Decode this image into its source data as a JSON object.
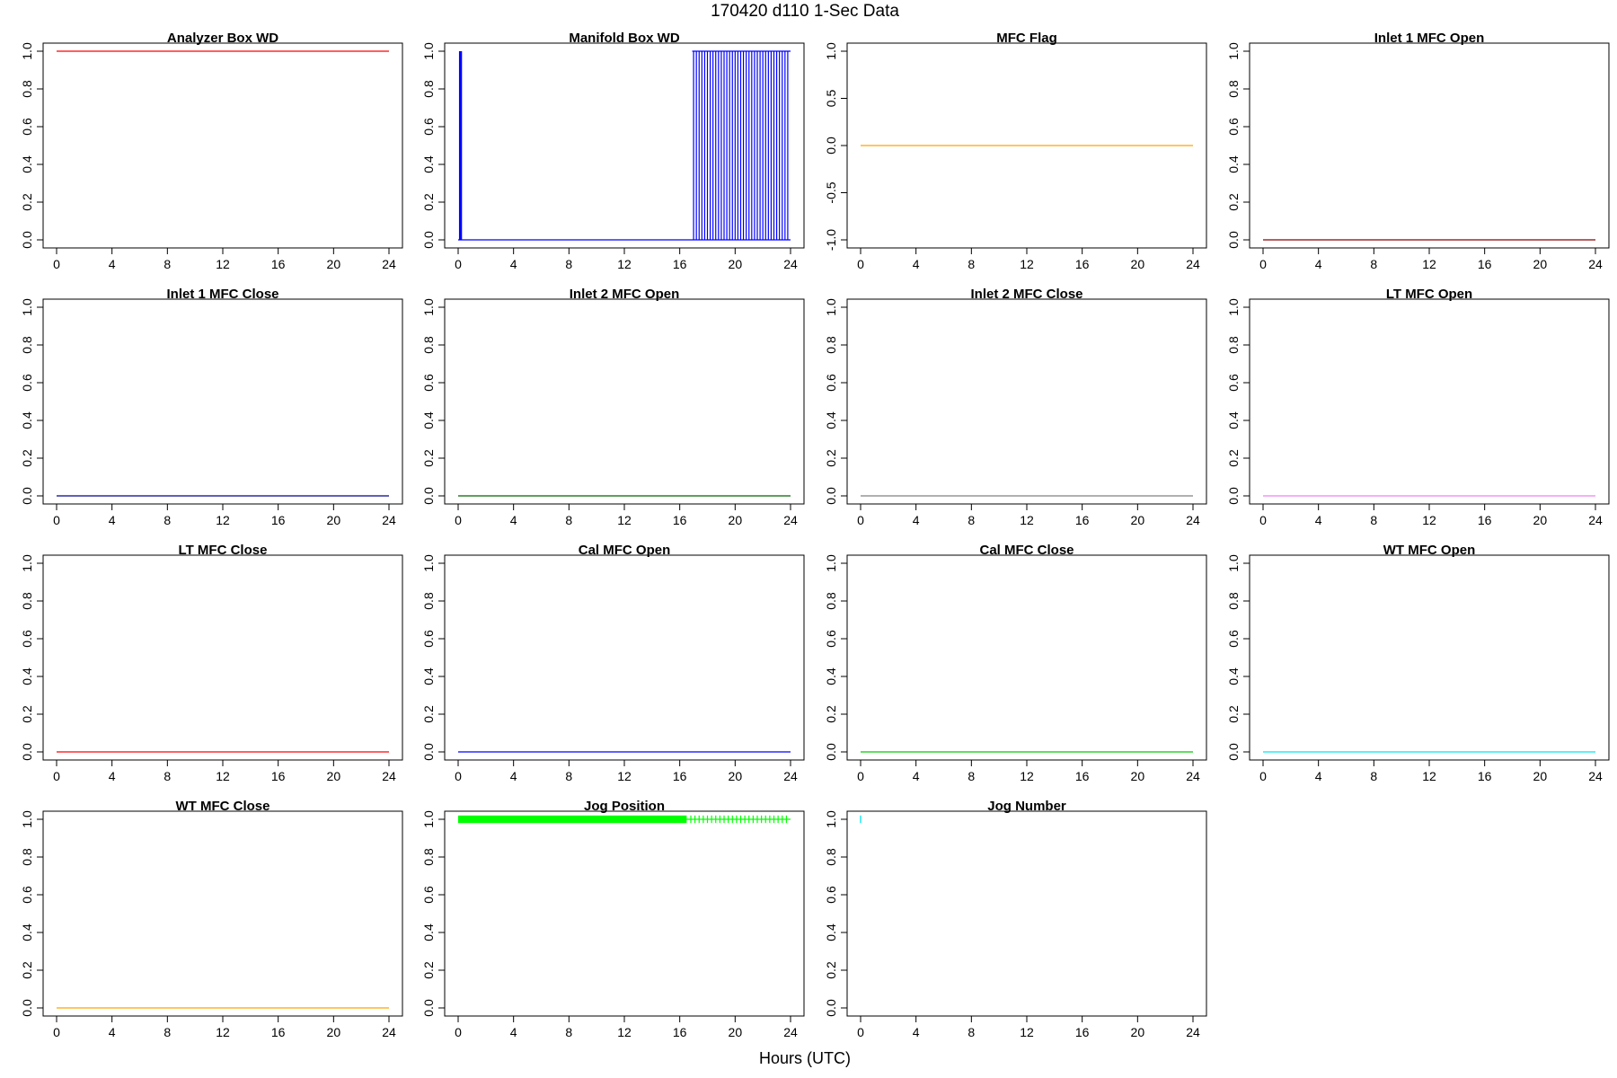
{
  "figure": {
    "title": "170420   d110   1-Sec Data",
    "xlabel": "Hours (UTC)"
  },
  "chart_data": [
    {
      "type": "line",
      "title": "Analyzer Box WD",
      "color": "#ff0000",
      "xlim": [
        0,
        24
      ],
      "ylim": [
        0,
        1
      ],
      "xticks": [
        "0",
        "4",
        "8",
        "12",
        "16",
        "20",
        "24"
      ],
      "yticks": [
        "0.0",
        "0.2",
        "0.4",
        "0.6",
        "0.8",
        "1.0"
      ],
      "grid": false,
      "series": [
        {
          "x": [
            0,
            24
          ],
          "y": [
            1,
            1
          ]
        }
      ]
    },
    {
      "type": "line",
      "title": "Manifold Box WD",
      "color": "#0000ff",
      "xlim": [
        0,
        24
      ],
      "ylim": [
        0,
        1
      ],
      "xticks": [
        "0",
        "4",
        "8",
        "12",
        "16",
        "20",
        "24"
      ],
      "yticks": [
        "0.0",
        "0.2",
        "0.4",
        "0.6",
        "0.8",
        "1.0"
      ],
      "grid": false,
      "series": [
        {
          "x": [
            0,
            24
          ],
          "y": [
            0,
            0
          ]
        }
      ],
      "pulses": {
        "x": [
          0.1,
          0.12,
          0.14,
          0.16,
          0.18,
          0.2,
          0.22,
          0.24,
          17.0,
          17.2,
          17.4,
          17.6,
          17.8,
          18.0,
          18.2,
          18.4,
          18.6,
          18.8,
          19.0,
          19.2,
          19.4,
          19.6,
          19.8,
          20.0,
          20.2,
          20.4,
          20.6,
          20.8,
          21.0,
          21.2,
          21.4,
          21.6,
          21.8,
          22.0,
          22.2,
          22.4,
          22.6,
          22.8,
          23.0,
          23.2,
          23.4,
          23.6,
          23.8
        ],
        "high": 1,
        "low": 0,
        "span": [
          16.9,
          24
        ]
      }
    },
    {
      "type": "line",
      "title": "MFC Flag",
      "color": "#ffa500",
      "xlim": [
        0,
        24
      ],
      "ylim": [
        -1,
        1
      ],
      "xticks": [
        "0",
        "4",
        "8",
        "12",
        "16",
        "20",
        "24"
      ],
      "yticks": [
        "-1.0",
        "-0.5",
        "0.0",
        "0.5",
        "1.0"
      ],
      "grid": false,
      "series": [
        {
          "x": [
            0,
            24
          ],
          "y": [
            0,
            0
          ]
        }
      ]
    },
    {
      "type": "line",
      "title": "Inlet 1 MFC Open",
      "color": "#8b0000",
      "xlim": [
        0,
        24
      ],
      "ylim": [
        0,
        1
      ],
      "xticks": [
        "0",
        "4",
        "8",
        "12",
        "16",
        "20",
        "24"
      ],
      "yticks": [
        "0.0",
        "0.2",
        "0.4",
        "0.6",
        "0.8",
        "1.0"
      ],
      "grid": false,
      "series": [
        {
          "x": [
            0,
            24
          ],
          "y": [
            0,
            0
          ]
        }
      ]
    },
    {
      "type": "line",
      "title": "Inlet 1 MFC Close",
      "color": "#00008b",
      "xlim": [
        0,
        24
      ],
      "ylim": [
        0,
        1
      ],
      "xticks": [
        "0",
        "4",
        "8",
        "12",
        "16",
        "20",
        "24"
      ],
      "yticks": [
        "0.0",
        "0.2",
        "0.4",
        "0.6",
        "0.8",
        "1.0"
      ],
      "grid": false,
      "series": [
        {
          "x": [
            0,
            24
          ],
          "y": [
            0,
            0
          ]
        }
      ]
    },
    {
      "type": "line",
      "title": "Inlet 2 MFC Open",
      "color": "#006400",
      "xlim": [
        0,
        24
      ],
      "ylim": [
        0,
        1
      ],
      "xticks": [
        "0",
        "4",
        "8",
        "12",
        "16",
        "20",
        "24"
      ],
      "yticks": [
        "0.0",
        "0.2",
        "0.4",
        "0.6",
        "0.8",
        "1.0"
      ],
      "grid": false,
      "series": [
        {
          "x": [
            0,
            24
          ],
          "y": [
            0,
            0
          ]
        }
      ]
    },
    {
      "type": "line",
      "title": "Inlet 2 MFC Close",
      "color": "#808080",
      "xlim": [
        0,
        24
      ],
      "ylim": [
        0,
        1
      ],
      "xticks": [
        "0",
        "4",
        "8",
        "12",
        "16",
        "20",
        "24"
      ],
      "yticks": [
        "0.0",
        "0.2",
        "0.4",
        "0.6",
        "0.8",
        "1.0"
      ],
      "grid": false,
      "series": [
        {
          "x": [
            0,
            24
          ],
          "y": [
            0,
            0
          ]
        }
      ]
    },
    {
      "type": "line",
      "title": "LT MFC Open",
      "color": "#ee82ee",
      "xlim": [
        0,
        24
      ],
      "ylim": [
        0,
        1
      ],
      "xticks": [
        "0",
        "4",
        "8",
        "12",
        "16",
        "20",
        "24"
      ],
      "yticks": [
        "0.0",
        "0.2",
        "0.4",
        "0.6",
        "0.8",
        "1.0"
      ],
      "grid": false,
      "series": [
        {
          "x": [
            0,
            24
          ],
          "y": [
            0,
            0
          ]
        }
      ]
    },
    {
      "type": "line",
      "title": "LT MFC Close",
      "color": "#ff0000",
      "xlim": [
        0,
        24
      ],
      "ylim": [
        0,
        1
      ],
      "xticks": [
        "0",
        "4",
        "8",
        "12",
        "16",
        "20",
        "24"
      ],
      "yticks": [
        "0.0",
        "0.2",
        "0.4",
        "0.6",
        "0.8",
        "1.0"
      ],
      "grid": false,
      "series": [
        {
          "x": [
            0,
            24
          ],
          "y": [
            0,
            0
          ]
        }
      ]
    },
    {
      "type": "line",
      "title": "Cal MFC Open",
      "color": "#0000ff",
      "xlim": [
        0,
        24
      ],
      "ylim": [
        0,
        1
      ],
      "xticks": [
        "0",
        "4",
        "8",
        "12",
        "16",
        "20",
        "24"
      ],
      "yticks": [
        "0.0",
        "0.2",
        "0.4",
        "0.6",
        "0.8",
        "1.0"
      ],
      "grid": false,
      "series": [
        {
          "x": [
            0,
            24
          ],
          "y": [
            0,
            0
          ]
        }
      ]
    },
    {
      "type": "line",
      "title": "Cal MFC Close",
      "color": "#00cc00",
      "xlim": [
        0,
        24
      ],
      "ylim": [
        0,
        1
      ],
      "xticks": [
        "0",
        "4",
        "8",
        "12",
        "16",
        "20",
        "24"
      ],
      "yticks": [
        "0.0",
        "0.2",
        "0.4",
        "0.6",
        "0.8",
        "1.0"
      ],
      "grid": false,
      "series": [
        {
          "x": [
            0,
            24
          ],
          "y": [
            0,
            0
          ]
        }
      ]
    },
    {
      "type": "line",
      "title": "WT MFC Open",
      "color": "#00e5ee",
      "xlim": [
        0,
        24
      ],
      "ylim": [
        0,
        1
      ],
      "xticks": [
        "0",
        "4",
        "8",
        "12",
        "16",
        "20",
        "24"
      ],
      "yticks": [
        "0.0",
        "0.2",
        "0.4",
        "0.6",
        "0.8",
        "1.0"
      ],
      "grid": false,
      "series": [
        {
          "x": [
            0,
            24
          ],
          "y": [
            0,
            0
          ]
        }
      ]
    },
    {
      "type": "line",
      "title": "WT MFC Close",
      "color": "#ffa500",
      "xlim": [
        0,
        24
      ],
      "ylim": [
        0,
        1
      ],
      "xticks": [
        "0",
        "4",
        "8",
        "12",
        "16",
        "20",
        "24"
      ],
      "yticks": [
        "0.0",
        "0.2",
        "0.4",
        "0.6",
        "0.8",
        "1.0"
      ],
      "grid": false,
      "series": [
        {
          "x": [
            0,
            24
          ],
          "y": [
            0,
            0
          ]
        }
      ]
    },
    {
      "type": "line",
      "title": "Jog Position",
      "color": "#00ff00",
      "xlim": [
        0,
        24
      ],
      "ylim": [
        0,
        1
      ],
      "xticks": [
        "0",
        "4",
        "8",
        "12",
        "16",
        "20",
        "24"
      ],
      "yticks": [
        "0.0",
        "0.2",
        "0.4",
        "0.6",
        "0.8",
        "1.0"
      ],
      "grid": false,
      "series": [
        {
          "x": [
            0,
            24
          ],
          "y": [
            1,
            1
          ]
        }
      ],
      "band": {
        "x": [
          0,
          16.5
        ],
        "y": [
          0.98,
          1.02
        ]
      },
      "pulses": {
        "x": [
          16.8,
          17.1,
          17.4,
          17.7,
          18.0,
          18.3,
          18.6,
          18.9,
          19.2,
          19.5,
          19.8,
          20.1,
          20.4,
          20.7,
          21.0,
          21.3,
          21.6,
          21.9,
          22.2,
          22.5,
          22.8,
          23.1,
          23.4,
          23.7
        ],
        "high": 1.02,
        "low": 0.98,
        "span": null
      }
    },
    {
      "type": "line",
      "title": "Jog Number",
      "color": "#00e5ee",
      "xlim": [
        0,
        24
      ],
      "ylim": [
        0,
        1
      ],
      "xticks": [
        "0",
        "4",
        "8",
        "12",
        "16",
        "20",
        "24"
      ],
      "yticks": [
        "0.0",
        "0.2",
        "0.4",
        "0.6",
        "0.8",
        "1.0"
      ],
      "grid": false,
      "series": [
        {
          "x": [
            0,
            0
          ],
          "y": [
            0.98,
            1.02
          ]
        }
      ]
    }
  ]
}
